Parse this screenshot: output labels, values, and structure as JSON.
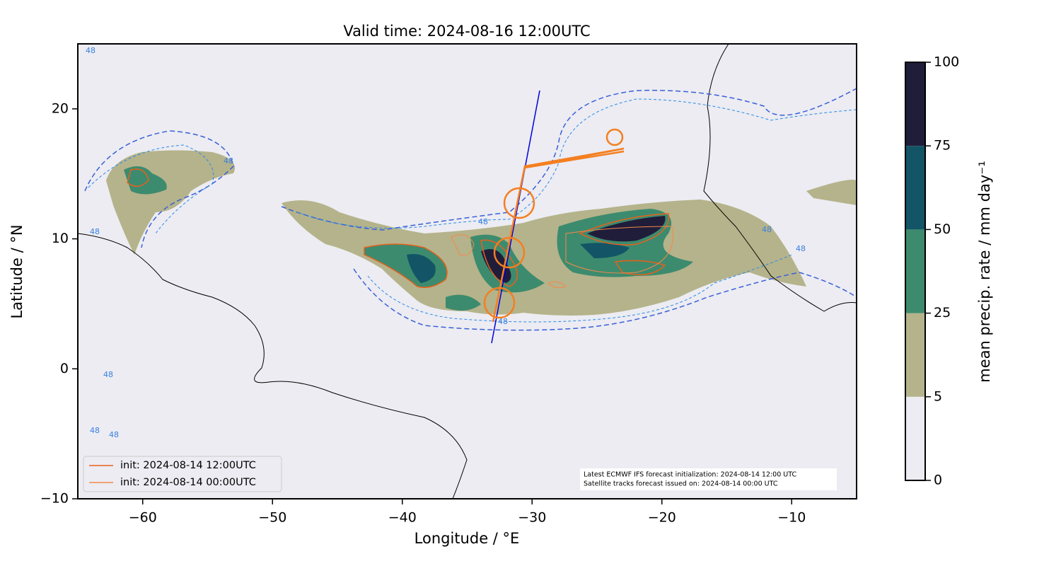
{
  "chart_data": {
    "type": "map",
    "title": "Valid time: 2024-08-16 12:00UTC",
    "x_label": "Longitude / °E",
    "y_label": "Latitude / °N",
    "xlim": [
      -65,
      -5
    ],
    "ylim": [
      -10,
      25
    ],
    "xticks": [
      {
        "value": -60,
        "label": "−60"
      },
      {
        "value": -50,
        "label": "−50"
      },
      {
        "value": -40,
        "label": "−40"
      },
      {
        "value": -30,
        "label": "−30"
      },
      {
        "value": -20,
        "label": "−20"
      },
      {
        "value": -10,
        "label": "−10"
      }
    ],
    "yticks": [
      {
        "value": -10,
        "label": "−10"
      },
      0,
      10,
      20
    ],
    "colorbar": {
      "label": "mean precip. rate / mm day⁻¹",
      "levels": [
        0,
        5,
        25,
        50,
        75,
        100
      ],
      "colors": [
        "#ececf2",
        "#b5b38b",
        "#3d8b6e",
        "#135566",
        "#201d3a"
      ]
    },
    "contour_level": 48,
    "series": [
      {
        "name": "init: 2024-08-14 12:00UTC",
        "color": "#e8601c"
      },
      {
        "name": "init: 2024-08-14 00:00UTC",
        "color": "#f4894a"
      }
    ],
    "annotations": [
      "Latest ECMWF IFS forecast initialization: 2024-08-14 12:00 UTC",
      "Satellite tracks forecast issued on: 2024-08-14 00:00 UTC"
    ]
  }
}
